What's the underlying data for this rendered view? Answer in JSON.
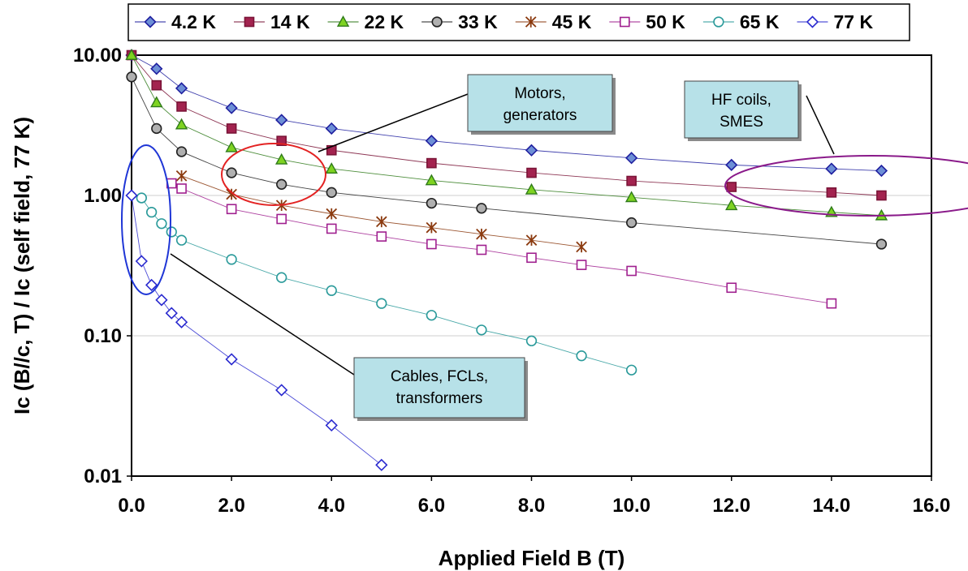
{
  "chart_data": {
    "type": "scatter",
    "xlabel": "Applied Field B (T)",
    "ylabel": "Ic (B//c, T) / Ic (self field, 77 K)",
    "xlim": [
      0,
      16
    ],
    "ylim": [
      0.01,
      10
    ],
    "y_scale": "log",
    "x_ticks": [
      "0.0",
      "2.0",
      "4.0",
      "6.0",
      "8.0",
      "10.0",
      "12.0",
      "14.0",
      "16.0"
    ],
    "y_ticks": [
      "0.01",
      "0.10",
      "1.00",
      "10.00"
    ],
    "grid": "horizontal",
    "legend": "top",
    "series": [
      {
        "name": "4.2 K",
        "marker": "diamond-filled",
        "color": "#1f1f9f",
        "fill": "#6d8fd6",
        "x": [
          0,
          0.5,
          1,
          2,
          3,
          4,
          6,
          8,
          10,
          12,
          14,
          15
        ],
        "y": [
          10,
          8.0,
          5.8,
          4.2,
          3.45,
          3.0,
          2.45,
          2.1,
          1.85,
          1.65,
          1.55,
          1.5
        ]
      },
      {
        "name": "14 K",
        "marker": "square-filled",
        "color": "#7a1437",
        "fill": "#a3234f",
        "x": [
          0,
          0.5,
          1,
          2,
          3,
          4,
          6,
          8,
          10,
          12,
          14,
          15
        ],
        "y": [
          10,
          6.1,
          4.3,
          3.0,
          2.45,
          2.1,
          1.7,
          1.45,
          1.27,
          1.15,
          1.05,
          1.0
        ]
      },
      {
        "name": "22 K",
        "marker": "triangle-filled",
        "color": "#2f7a1a",
        "fill": "#7ed321",
        "x": [
          0,
          0.5,
          1,
          2,
          3,
          4,
          6,
          8,
          10,
          12,
          14,
          15
        ],
        "y": [
          10,
          4.6,
          3.2,
          2.2,
          1.8,
          1.55,
          1.28,
          1.1,
          0.97,
          0.85,
          0.76,
          0.72
        ]
      },
      {
        "name": "33 K",
        "marker": "circle-filled",
        "color": "#222222",
        "fill": "#b0b0b0",
        "x": [
          0,
          0.5,
          1,
          2,
          3,
          4,
          6,
          7,
          10,
          15
        ],
        "y": [
          7.0,
          3.0,
          2.05,
          1.45,
          1.2,
          1.05,
          0.88,
          0.81,
          0.64,
          0.45
        ]
      },
      {
        "name": "45 K",
        "marker": "star",
        "color": "#8b3a0f",
        "fill": "none",
        "x": [
          1,
          2,
          3,
          4,
          5,
          6,
          7,
          8,
          9
        ],
        "y": [
          1.38,
          1.02,
          0.85,
          0.74,
          0.65,
          0.59,
          0.53,
          0.48,
          0.43
        ]
      },
      {
        "name": "50 K",
        "marker": "square-open",
        "color": "#a0208f",
        "fill": "#ffffff",
        "x": [
          0.8,
          1,
          2,
          3,
          4,
          5,
          6,
          7,
          8,
          9,
          10,
          12,
          14
        ],
        "y": [
          1.22,
          1.12,
          0.8,
          0.68,
          0.58,
          0.51,
          0.45,
          0.41,
          0.36,
          0.32,
          0.29,
          0.22,
          0.17
        ]
      },
      {
        "name": "65 K",
        "marker": "circle-open",
        "color": "#2a9a9a",
        "fill": "#ffffff",
        "x": [
          0.2,
          0.4,
          0.6,
          0.8,
          1,
          2,
          3,
          4,
          5,
          6,
          7,
          8,
          9,
          10
        ],
        "y": [
          0.96,
          0.76,
          0.63,
          0.55,
          0.48,
          0.35,
          0.26,
          0.21,
          0.17,
          0.14,
          0.11,
          0.092,
          0.072,
          0.057
        ]
      },
      {
        "name": "77 K",
        "marker": "diamond-open",
        "color": "#2a2acf",
        "fill": "#ffffff",
        "x": [
          0,
          0.2,
          0.4,
          0.6,
          0.8,
          1,
          2,
          3,
          4,
          5
        ],
        "y": [
          1.0,
          0.34,
          0.23,
          0.18,
          0.145,
          0.125,
          0.068,
          0.041,
          0.023,
          0.012
        ]
      }
    ],
    "annotations": [
      {
        "id": "motors",
        "line1": "Motors,",
        "line2": "generators"
      },
      {
        "id": "hf",
        "line1": "HF coils,",
        "line2": "SMES"
      },
      {
        "id": "cables",
        "line1": "Cables, FCLs,",
        "line2": "transformers"
      }
    ],
    "highlight_colors": {
      "motors": "#e32222",
      "hf": "#8a1a8a",
      "cables": "#1f36d6",
      "box_fill": "#b7e1e8"
    }
  }
}
